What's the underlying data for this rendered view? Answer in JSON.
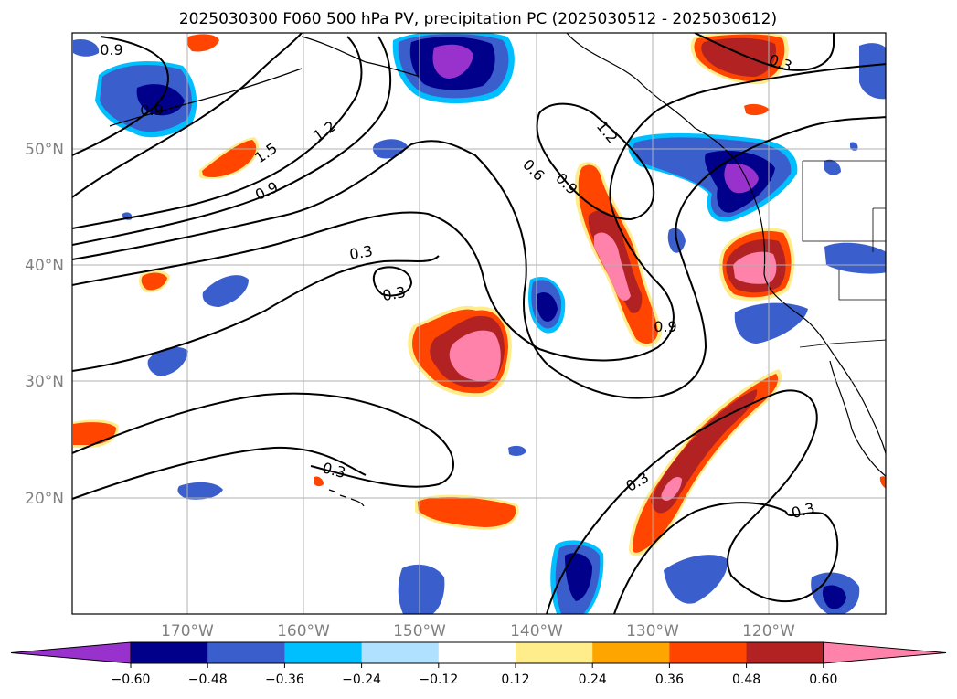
{
  "title": "2025030300 F060 500 hPa PV, precipitation PC (2025030512 - 2025030612)",
  "lat_labels": [
    "50°N",
    "40°N",
    "30°N",
    "20°N"
  ],
  "lon_labels": [
    "170°W",
    "160°W",
    "150°W",
    "140°W",
    "130°W",
    "120°W"
  ],
  "contour_labels": [
    "0.9",
    "0.9",
    "1.2",
    "1.5",
    "0.9",
    "0.3",
    "0.3",
    "0.3",
    "1.2",
    "0.6",
    "0.9",
    "0.9",
    "0.3",
    "0.3",
    "0.3"
  ],
  "colorbar": {
    "ticks": [
      "−0.60",
      "−0.48",
      "−0.36",
      "−0.24",
      "−0.12",
      "0.12",
      "0.24",
      "0.36",
      "0.48",
      "0.60"
    ],
    "colors": [
      "#9932cc",
      "#00008b",
      "#3a5fcd",
      "#00bfff",
      "#b0e2ff",
      "#ffffff",
      "#ffec8b",
      "#ffa500",
      "#ff4500",
      "#b22222",
      "#ff82ab"
    ]
  },
  "colors": {
    "neg_strong": "#9932cc",
    "neg_1": "#00008b",
    "neg_2": "#3a5fcd",
    "neg_3": "#00bfff",
    "neg_4": "#b0e2ff",
    "pos_1": "#ffec8b",
    "pos_2": "#ffa500",
    "pos_3": "#ff4500",
    "pos_4": "#b22222",
    "pos_strong": "#ff82ab"
  }
}
